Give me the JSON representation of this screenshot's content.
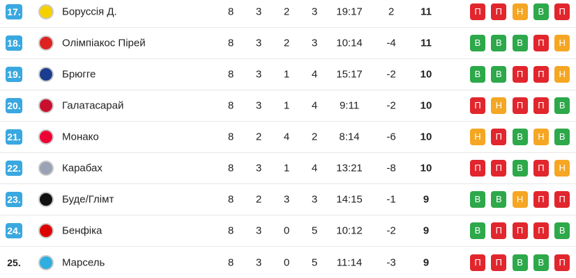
{
  "table": {
    "rows": [
      {
        "position": "17.",
        "team": "Боруссія Д.",
        "played": 8,
        "wins": 3,
        "draws": 2,
        "losses": 3,
        "goals": "19:17",
        "diff": 2,
        "points": 11,
        "form": [
          {
            "result": "П",
            "color": "#e1262d"
          },
          {
            "result": "П",
            "color": "#e1262d"
          },
          {
            "result": "Н",
            "color": "#f5a623"
          },
          {
            "result": "В",
            "color": "#2da84a"
          },
          {
            "result": "П",
            "color": "#e1262d"
          }
        ]
      },
      {
        "position": "18.",
        "team": "Олімпіакос Пірей",
        "played": 8,
        "wins": 3,
        "draws": 2,
        "losses": 3,
        "goals": "10:14",
        "diff": -4,
        "points": 11,
        "form": [
          {
            "result": "В",
            "color": "#2da84a"
          },
          {
            "result": "В",
            "color": "#2da84a"
          },
          {
            "result": "В",
            "color": "#2da84a"
          },
          {
            "result": "П",
            "color": "#e1262d"
          },
          {
            "result": "Н",
            "color": "#f5a623"
          }
        ]
      },
      {
        "position": "19.",
        "team": "Брюгге",
        "played": 8,
        "wins": 3,
        "draws": 1,
        "losses": 4,
        "goals": "15:17",
        "diff": -2,
        "points": 10,
        "form": [
          {
            "result": "В",
            "color": "#2da84a"
          },
          {
            "result": "В",
            "color": "#2da84a"
          },
          {
            "result": "П",
            "color": "#e1262d"
          },
          {
            "result": "П",
            "color": "#e1262d"
          },
          {
            "result": "Н",
            "color": "#f5a623"
          }
        ]
      },
      {
        "position": "20.",
        "team": "Галатасарай",
        "played": 8,
        "wins": 3,
        "draws": 1,
        "losses": 4,
        "goals": "9:11",
        "diff": -2,
        "points": 10,
        "form": [
          {
            "result": "П",
            "color": "#e1262d"
          },
          {
            "result": "Н",
            "color": "#f5a623"
          },
          {
            "result": "П",
            "color": "#e1262d"
          },
          {
            "result": "П",
            "color": "#e1262d"
          },
          {
            "result": "В",
            "color": "#2da84a"
          }
        ]
      },
      {
        "position": "21.",
        "team": "Монако",
        "played": 8,
        "wins": 2,
        "draws": 4,
        "losses": 2,
        "goals": "8:14",
        "diff": -6,
        "points": 10,
        "form": [
          {
            "result": "Н",
            "color": "#f5a623"
          },
          {
            "result": "П",
            "color": "#e1262d"
          },
          {
            "result": "В",
            "color": "#2da84a"
          },
          {
            "result": "Н",
            "color": "#f5a623"
          },
          {
            "result": "В",
            "color": "#2da84a"
          }
        ]
      },
      {
        "position": "22.",
        "team": "Карабах",
        "played": 8,
        "wins": 3,
        "draws": 1,
        "losses": 4,
        "goals": "13:21",
        "diff": -8,
        "points": 10,
        "form": [
          {
            "result": "П",
            "color": "#e1262d"
          },
          {
            "result": "П",
            "color": "#e1262d"
          },
          {
            "result": "В",
            "color": "#2da84a"
          },
          {
            "result": "П",
            "color": "#e1262d"
          },
          {
            "result": "Н",
            "color": "#f5a623"
          }
        ]
      },
      {
        "position": "23.",
        "team": "Буде/Глімт",
        "played": 8,
        "wins": 2,
        "draws": 3,
        "losses": 3,
        "goals": "14:15",
        "diff": -1,
        "points": 9,
        "form": [
          {
            "result": "В",
            "color": "#2da84a"
          },
          {
            "result": "В",
            "color": "#2da84a"
          },
          {
            "result": "Н",
            "color": "#f5a623"
          },
          {
            "result": "П",
            "color": "#e1262d"
          },
          {
            "result": "П",
            "color": "#e1262d"
          }
        ]
      },
      {
        "position": "24.",
        "team": "Бенфіка",
        "played": 8,
        "wins": 3,
        "draws": 0,
        "losses": 5,
        "goals": "10:12",
        "diff": -2,
        "points": 9,
        "form": [
          {
            "result": "В",
            "color": "#2da84a"
          },
          {
            "result": "П",
            "color": "#e1262d"
          },
          {
            "result": "П",
            "color": "#e1262d"
          },
          {
            "result": "П",
            "color": "#e1262d"
          },
          {
            "result": "В",
            "color": "#2da84a"
          }
        ]
      },
      {
        "position": "25.",
        "team": "Марсель",
        "played": 8,
        "wins": 3,
        "draws": 0,
        "losses": 5,
        "goals": "11:14",
        "diff": -3,
        "points": 9,
        "form": [
          {
            "result": "П",
            "color": "#e1262d"
          },
          {
            "result": "П",
            "color": "#e1262d"
          },
          {
            "result": "В",
            "color": "#2da84a"
          },
          {
            "result": "В",
            "color": "#2da84a"
          },
          {
            "result": "П",
            "color": "#e1262d"
          }
        ]
      }
    ]
  }
}
